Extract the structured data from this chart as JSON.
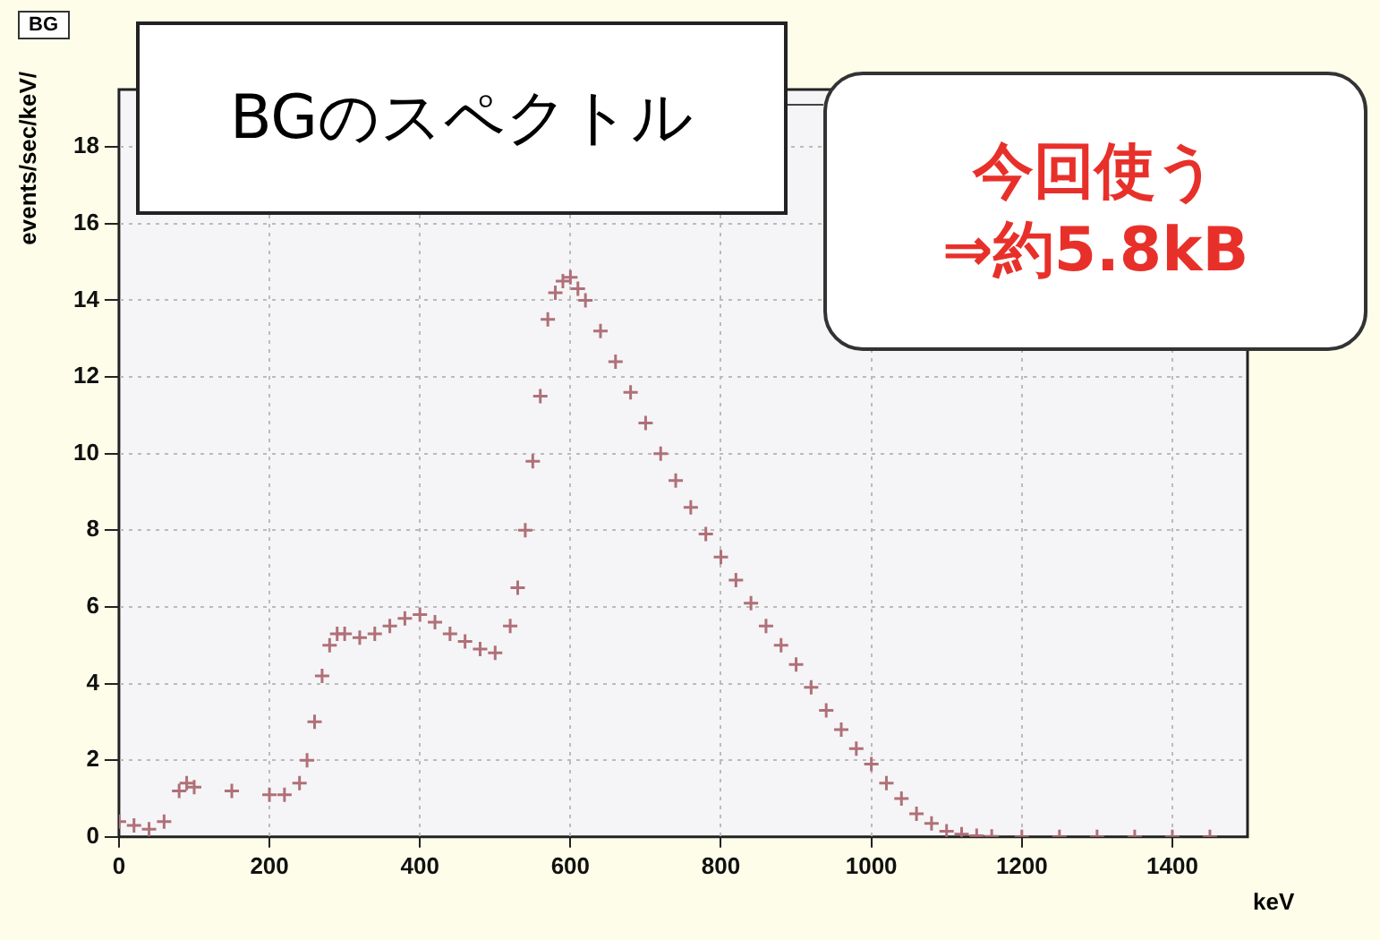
{
  "chart_data": {
    "type": "scatter",
    "title": "BG",
    "xlabel": "keV",
    "ylabel": "events/sec/keV/",
    "annotations": [
      "BGのスペクトル",
      "今回使う",
      "⇒約5.8kB"
    ],
    "x": [
      0,
      20,
      40,
      60,
      80,
      90,
      100,
      150,
      200,
      220,
      240,
      250,
      260,
      270,
      280,
      290,
      300,
      320,
      340,
      360,
      380,
      400,
      420,
      440,
      460,
      480,
      500,
      520,
      530,
      540,
      550,
      560,
      570,
      580,
      590,
      600,
      610,
      620,
      640,
      660,
      680,
      700,
      720,
      740,
      760,
      780,
      800,
      820,
      840,
      860,
      880,
      900,
      920,
      940,
      960,
      980,
      1000,
      1020,
      1040,
      1060,
      1080,
      1100,
      1120,
      1140,
      1160,
      1200,
      1250,
      1300,
      1350,
      1400,
      1450
    ],
    "series": [
      {
        "color": "#b07078",
        "values": [
          0.4,
          0.3,
          0.2,
          0.4,
          1.2,
          1.4,
          1.3,
          1.2,
          1.1,
          1.1,
          1.4,
          2.0,
          3.0,
          4.2,
          5.0,
          5.3,
          5.3,
          5.2,
          5.3,
          5.5,
          5.7,
          5.8,
          5.6,
          5.3,
          5.1,
          4.9,
          4.8,
          5.5,
          6.5,
          8.0,
          9.8,
          11.5,
          13.5,
          14.2,
          14.5,
          14.6,
          14.3,
          14.0,
          13.2,
          12.4,
          11.6,
          10.8,
          10.0,
          9.3,
          8.6,
          7.9,
          7.3,
          6.7,
          6.1,
          5.5,
          5.0,
          4.5,
          3.9,
          3.3,
          2.8,
          2.3,
          1.9,
          1.4,
          1.0,
          0.6,
          0.35,
          0.15,
          0.07,
          0.03,
          0.01,
          0,
          0,
          0,
          0,
          0,
          0
        ]
      }
    ],
    "xlim": [
      0,
      1500
    ],
    "ylim": [
      0,
      19.5
    ],
    "xticks": [
      0,
      200,
      400,
      600,
      800,
      1000,
      1200,
      1400
    ],
    "yticks": [
      0,
      2,
      4,
      6,
      8,
      10,
      12,
      14,
      16,
      18
    ],
    "grid": true,
    "marker": "cross"
  }
}
